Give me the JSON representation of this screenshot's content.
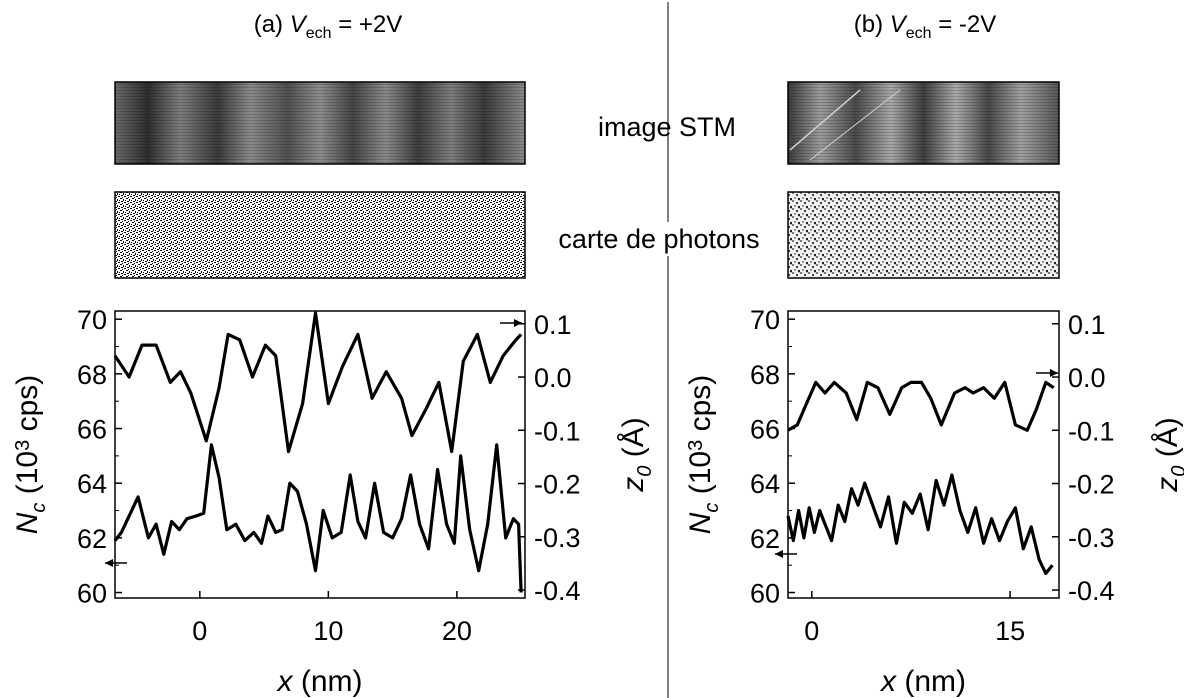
{
  "panels": [
    {
      "label_prefix": "(a) ",
      "label_var": "V",
      "label_sub": "ech",
      "label_suffix": " = +2V"
    },
    {
      "label_prefix": "(b) ",
      "label_var": "V",
      "label_sub": "ech",
      "label_suffix": " = -2V"
    }
  ],
  "center_labels": {
    "stm": "image STM",
    "photons": "carte de photons"
  },
  "axes": {
    "left_var": "N",
    "left_sub": "c",
    "left_unit_open": " (10",
    "left_sup": "3",
    "left_unit_close": " cps)",
    "right_var": "z",
    "right_sub": "0",
    "right_unit": " (Å)",
    "x_var": "x",
    "x_unit": " (nm)"
  },
  "colors": {
    "line": "#000000",
    "divider": "#555555"
  },
  "chart_data": [
    {
      "type": "line",
      "title": "(a) V_ech = +2V",
      "xlabel": "x (nm)",
      "ylabel_left": "N_c (10^3 cps)",
      "ylabel_right": "z_0 (Å)",
      "xlim": [
        -6.6,
        25.3
      ],
      "ylim_left": [
        59.8,
        70.3
      ],
      "ylim_right": [
        -0.415,
        0.124
      ],
      "xticks": [
        0,
        10,
        20
      ],
      "yticks_left": [
        60,
        62,
        64,
        66,
        68,
        70
      ],
      "yticks_right": [
        0.1,
        0.0,
        -0.1,
        -0.2,
        -0.3,
        -0.4
      ],
      "ytick_labels_left": [
        "60",
        "62",
        "64",
        "66",
        "68",
        "70"
      ],
      "ytick_labels_right": [
        "0.1",
        "0.0",
        "-0.1",
        "-0.2",
        "-0.3",
        "-0.4"
      ],
      "xtick_labels": [
        "0",
        "10",
        "20"
      ],
      "series": [
        {
          "axis": "right",
          "x": [
            -6.6,
            -5.5,
            -4.5,
            -3.4,
            -2.3,
            -1.5,
            -0.7,
            0.5,
            1.5,
            2.2,
            3.1,
            4.1,
            5.1,
            5.9,
            6.9,
            8.0,
            9.0,
            10.0,
            11.1,
            12.3,
            13.4,
            14.5,
            15.7,
            16.5,
            17.6,
            18.6,
            19.6,
            20.5,
            21.6,
            22.6,
            23.6,
            24.6,
            25.0
          ],
          "y": [
            0.04,
            0.0,
            0.06,
            0.06,
            -0.01,
            0.01,
            -0.03,
            -0.12,
            -0.02,
            0.08,
            0.07,
            0.0,
            0.06,
            0.04,
            -0.14,
            -0.05,
            0.12,
            -0.05,
            0.02,
            0.08,
            -0.04,
            0.01,
            -0.04,
            -0.11,
            -0.06,
            -0.01,
            -0.14,
            0.03,
            0.08,
            -0.01,
            0.04,
            0.07,
            0.08
          ]
        },
        {
          "axis": "left",
          "x": [
            -6.6,
            -6.1,
            -5.4,
            -4.8,
            -4.0,
            -3.4,
            -2.8,
            -2.2,
            -1.6,
            -1.0,
            -0.3,
            0.3,
            0.9,
            1.5,
            2.1,
            2.8,
            3.5,
            4.2,
            4.8,
            5.3,
            5.9,
            6.4,
            7.0,
            7.6,
            8.3,
            9.0,
            9.6,
            10.3,
            11.0,
            11.7,
            12.3,
            12.9,
            13.6,
            14.3,
            15.0,
            15.7,
            16.4,
            17.1,
            17.8,
            18.5,
            19.2,
            19.8,
            20.3,
            21.0,
            21.7,
            22.4,
            23.1,
            23.8,
            24.4,
            24.8,
            25.0
          ],
          "y": [
            61.9,
            62.2,
            62.9,
            63.5,
            62.0,
            62.5,
            61.4,
            62.6,
            62.3,
            62.7,
            62.8,
            62.9,
            65.4,
            64.2,
            62.3,
            62.5,
            61.9,
            62.2,
            61.8,
            62.8,
            62.2,
            62.3,
            64.0,
            63.7,
            62.5,
            60.8,
            63.0,
            62.0,
            62.2,
            64.3,
            62.6,
            62.0,
            64.0,
            62.2,
            62.0,
            62.7,
            64.3,
            62.5,
            61.6,
            64.5,
            62.5,
            61.8,
            65.0,
            62.3,
            60.8,
            62.5,
            65.4,
            62.0,
            62.7,
            62.5,
            60.0
          ]
        }
      ]
    },
    {
      "type": "line",
      "title": "(b) V_ech = -2V",
      "xlabel": "x (nm)",
      "ylabel_left": "N_c (10^3 cps)",
      "ylabel_right": "z_0 (Å)",
      "xlim": [
        -1.8,
        18.7
      ],
      "ylim_left": [
        59.8,
        70.3
      ],
      "ylim_right": [
        -0.415,
        0.124
      ],
      "xticks": [
        0,
        15
      ],
      "yticks_left": [
        60,
        62,
        64,
        66,
        68,
        70
      ],
      "yticks_right": [
        0.1,
        0.0,
        -0.1,
        -0.2,
        -0.3,
        -0.4
      ],
      "ytick_labels_left": [
        "60",
        "62",
        "64",
        "66",
        "68",
        "70"
      ],
      "ytick_labels_right": [
        "0.1",
        "0.0",
        "-0.1",
        "-0.2",
        "-0.3",
        "-0.4"
      ],
      "xtick_labels": [
        "0",
        "15"
      ],
      "series": [
        {
          "axis": "right",
          "x": [
            -1.8,
            -1.1,
            -0.4,
            0.3,
            1.0,
            1.7,
            2.6,
            3.4,
            4.2,
            5.0,
            5.9,
            6.8,
            7.5,
            8.3,
            9.0,
            9.8,
            10.8,
            11.6,
            12.2,
            13.0,
            13.8,
            14.6,
            15.4,
            16.3,
            17.0,
            17.7,
            18.3
          ],
          "y": [
            -0.1,
            -0.09,
            -0.05,
            -0.01,
            -0.03,
            -0.01,
            -0.03,
            -0.08,
            -0.01,
            -0.02,
            -0.07,
            -0.02,
            -0.01,
            -0.01,
            -0.04,
            -0.09,
            -0.03,
            -0.02,
            -0.03,
            -0.02,
            -0.04,
            -0.01,
            -0.09,
            -0.1,
            -0.06,
            -0.01,
            -0.02
          ]
        },
        {
          "axis": "left",
          "x": [
            -1.8,
            -1.4,
            -1.0,
            -0.6,
            -0.2,
            0.2,
            0.6,
            1.0,
            1.5,
            2.0,
            2.5,
            3.0,
            3.5,
            4.0,
            4.6,
            5.2,
            5.8,
            6.4,
            7.0,
            7.6,
            8.2,
            8.8,
            9.4,
            10.0,
            10.6,
            11.2,
            11.8,
            12.4,
            13.0,
            13.6,
            14.2,
            14.8,
            15.4,
            16.0,
            16.6,
            17.2,
            17.7,
            18.2
          ],
          "y": [
            62.8,
            61.9,
            63.0,
            62.0,
            63.1,
            62.2,
            63.0,
            62.5,
            61.9,
            63.2,
            62.6,
            63.8,
            63.2,
            64.0,
            63.2,
            62.4,
            63.5,
            61.8,
            63.3,
            62.9,
            63.6,
            62.3,
            64.1,
            63.2,
            64.3,
            63.0,
            62.2,
            63.1,
            61.8,
            62.7,
            61.9,
            62.6,
            63.1,
            61.6,
            62.4,
            61.2,
            60.7,
            61.0
          ]
        }
      ]
    }
  ]
}
